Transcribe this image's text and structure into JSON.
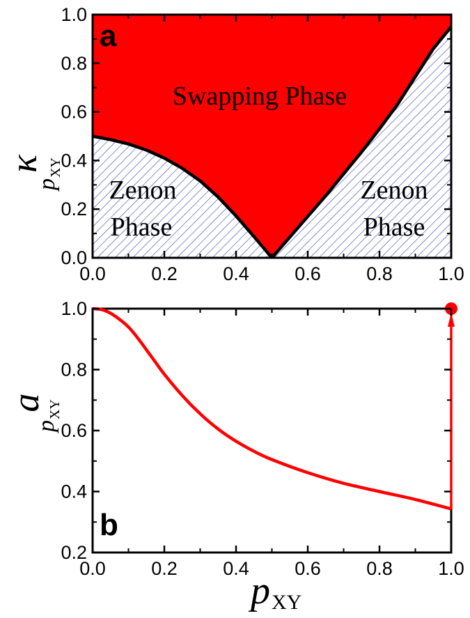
{
  "chart_data": [
    {
      "type": "area",
      "panel_label": "a",
      "ylabel_symbol": "κ",
      "ylabel_subscript_symbol": "p",
      "ylabel_subscript_index": "XY",
      "xlim": [
        0,
        1
      ],
      "ylim": [
        0,
        1
      ],
      "x_ticks": [
        "0.0",
        "0.2",
        "0.4",
        "0.6",
        "0.8",
        "1.0"
      ],
      "y_ticks": [
        "0.0",
        "0.2",
        "0.4",
        "0.6",
        "0.8",
        "1.0"
      ],
      "boundary": {
        "left_branch": {
          "x": [
            0.0,
            0.05,
            0.1,
            0.15,
            0.2,
            0.25,
            0.3,
            0.35,
            0.4,
            0.45,
            0.5
          ],
          "y": [
            0.5,
            0.486,
            0.468,
            0.443,
            0.41,
            0.368,
            0.316,
            0.25,
            0.172,
            0.087,
            0.0
          ]
        },
        "right_branch": {
          "x": [
            0.5,
            0.55,
            0.6,
            0.65,
            0.7,
            0.75,
            0.8,
            0.85,
            0.9,
            0.95,
            1.0
          ],
          "y": [
            0.0,
            0.085,
            0.17,
            0.255,
            0.345,
            0.435,
            0.53,
            0.63,
            0.745,
            0.86,
            0.95
          ]
        }
      },
      "regions": [
        {
          "name": "Swapping Phase",
          "fill": "#ff0000"
        },
        {
          "name_lines": [
            "Zenon",
            "Phase"
          ],
          "side": "left",
          "fill": "hatched-blue"
        },
        {
          "name_lines": [
            "Zenon",
            "Phase"
          ],
          "side": "right",
          "fill": "hatched-blue"
        }
      ],
      "colors": {
        "swap": "#ff0000",
        "hatch": "#3344aa",
        "boundary": "#000000"
      }
    },
    {
      "type": "line",
      "panel_label": "b",
      "xlabel_symbol": "p",
      "xlabel_subscript": "XY",
      "ylabel_symbol": "a",
      "ylabel_subscript_symbol": "p",
      "ylabel_subscript_index": "XY",
      "xlim": [
        0,
        1
      ],
      "ylim": [
        0.2,
        1.0
      ],
      "x_ticks": [
        "0.0",
        "0.2",
        "0.4",
        "0.6",
        "0.8",
        "1.0"
      ],
      "y_ticks": [
        "0.2",
        "0.4",
        "0.6",
        "0.8",
        "1.0"
      ],
      "series": [
        {
          "color": "#ff0000",
          "x": [
            0.0,
            0.025,
            0.05,
            0.075,
            0.1,
            0.125,
            0.15,
            0.175,
            0.2,
            0.25,
            0.3,
            0.35,
            0.4,
            0.45,
            0.5,
            0.6,
            0.7,
            0.8,
            0.9,
            1.0
          ],
          "y": [
            1.0,
            0.997,
            0.985,
            0.965,
            0.94,
            0.905,
            0.865,
            0.825,
            0.785,
            0.715,
            0.655,
            0.605,
            0.565,
            0.532,
            0.505,
            0.462,
            0.427,
            0.4,
            0.374,
            0.343
          ]
        }
      ],
      "jump": {
        "x": 1.0,
        "from_y": 0.343,
        "to_y": 1.0,
        "end_marker_y": 1.0
      },
      "colors": {
        "line": "#ff0000"
      }
    }
  ]
}
